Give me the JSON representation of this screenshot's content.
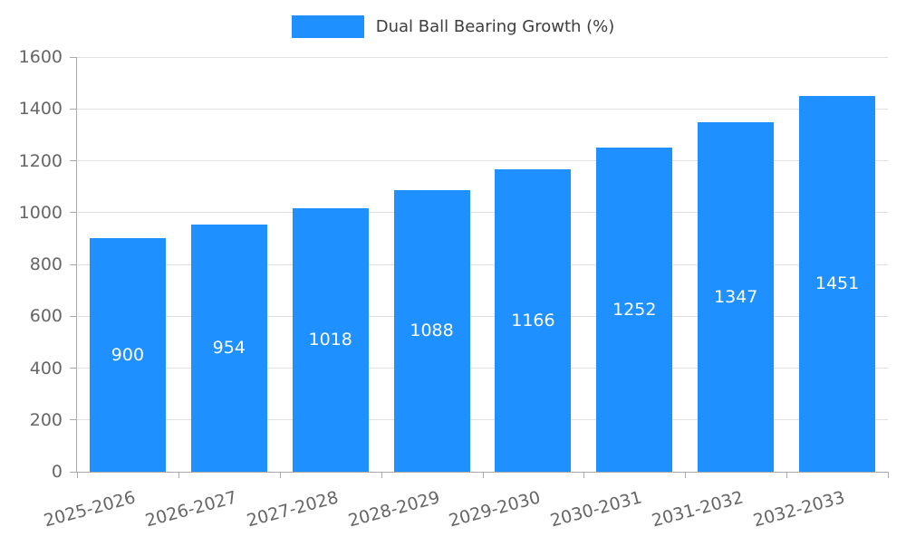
{
  "chart_data": {
    "type": "bar",
    "title": "Dual Ball Bearing Growth (%)",
    "xlabel": "",
    "ylabel": "",
    "categories": [
      "2025-2026",
      "2026-2027",
      "2027-2028",
      "2028-2029",
      "2029-2030",
      "2030-2031",
      "2031-2032",
      "2032-2033"
    ],
    "values": [
      900,
      954,
      1018,
      1088,
      1166,
      1252,
      1347,
      1451
    ],
    "ylim": [
      0,
      1600
    ],
    "yticks": [
      0,
      200,
      400,
      600,
      800,
      1000,
      1200,
      1400,
      1600
    ],
    "grid": true,
    "legend_position": "top",
    "bar_color": "#1E90FF",
    "bar_label_color": "#ffffff",
    "axis_text_color": "#666666",
    "legend_text_color": "#3d3d3d",
    "grid_color": "#e0e0e0",
    "axis_line_color": "#aaaaaa",
    "background_color": "#ffffff"
  }
}
